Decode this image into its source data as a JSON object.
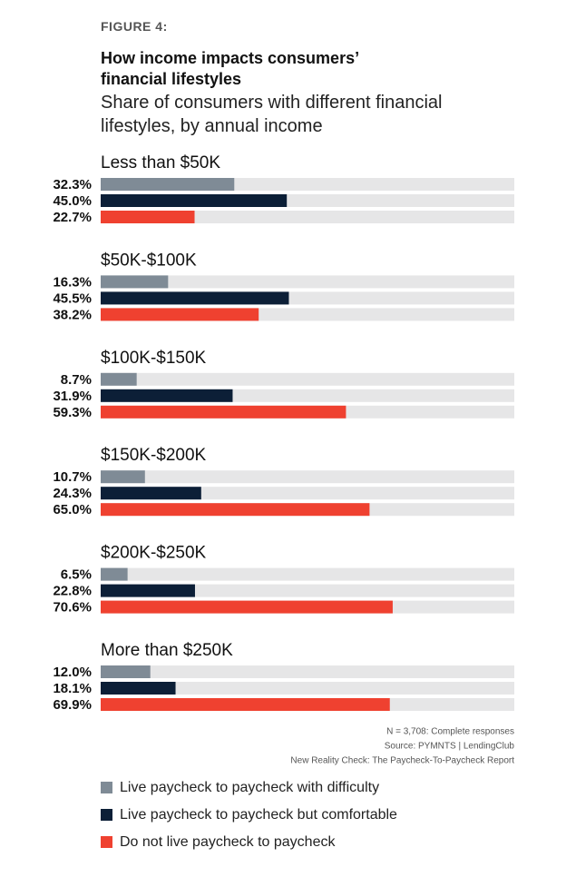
{
  "chart_data": {
    "type": "bar",
    "label": "FIGURE 4:",
    "title": "How income impacts consumers’ financial lifestyles",
    "subtitle": "Share of consumers with different financial lifestyles, by annual income",
    "categories": [
      "Less than $50K",
      "$50K-$100K",
      "$100K-$150K",
      "$150K-$200K",
      "$200K-$250K",
      "More than $250K"
    ],
    "xlim": [
      0,
      100
    ],
    "series": [
      {
        "name": "Live paycheck to paycheck with difficulty",
        "color": "#7f8b96",
        "values": [
          32.3,
          16.3,
          8.7,
          10.7,
          6.5,
          12.0
        ],
        "value_labels": [
          "32.3%",
          "16.3%",
          "8.7%",
          "10.7%",
          "6.5%",
          "12.0%"
        ]
      },
      {
        "name": "Live paycheck to paycheck but comfortable",
        "color": "#0c1f37",
        "values": [
          45.0,
          45.5,
          31.9,
          24.3,
          22.8,
          18.1
        ],
        "value_labels": [
          "45.0%",
          "45.5%",
          "31.9%",
          "24.3%",
          "22.8%",
          "18.1%"
        ]
      },
      {
        "name": "Do not live paycheck to paycheck",
        "color": "#ef4130",
        "values": [
          22.7,
          38.2,
          59.3,
          65.0,
          70.6,
          69.9
        ],
        "value_labels": [
          "22.7%",
          "38.2%",
          "59.3%",
          "65.0%",
          "70.6%",
          "69.9%"
        ]
      }
    ],
    "notes": [
      "N = 3,708: Complete responses",
      "Source: PYMNTS  |  LendingClub",
      "New Reality Check: The Paycheck-To-Paycheck Report"
    ]
  }
}
